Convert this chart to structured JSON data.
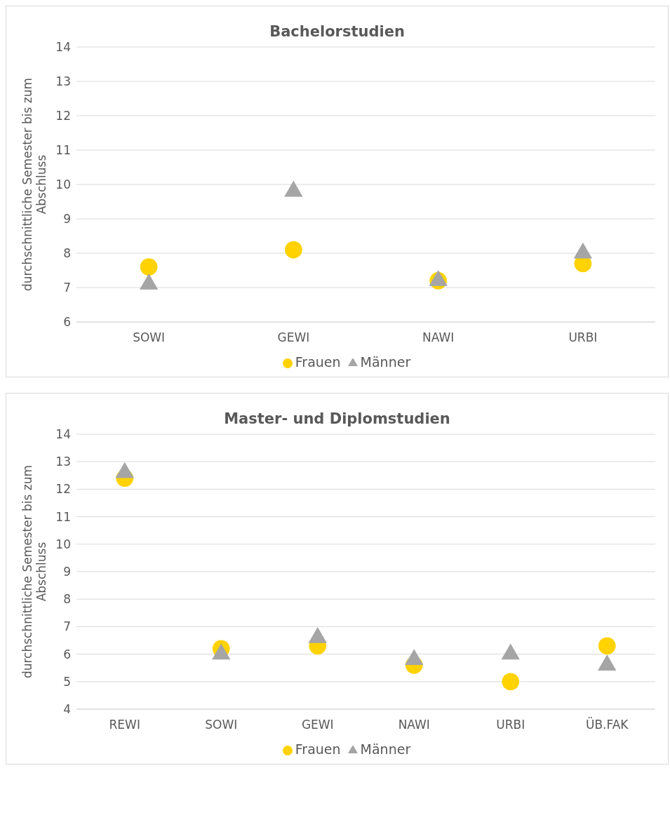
{
  "chart_data": [
    {
      "type": "scatter",
      "title": "Bachelorstudien",
      "ylabel": "durchschnittliche Semester bis zum Abschluss",
      "categories": [
        "SOWI",
        "GEWI",
        "NAWI",
        "URBI"
      ],
      "ylim": [
        6,
        14
      ],
      "yticks": [
        6,
        7,
        8,
        9,
        10,
        11,
        12,
        13,
        14
      ],
      "grid": "y",
      "legend": "bottom",
      "series": [
        {
          "name": "Frauen",
          "color": "#ffd200",
          "marker": "circle",
          "values": [
            7.6,
            8.1,
            7.2,
            7.7
          ]
        },
        {
          "name": "Männer",
          "color": "#a5a5a5",
          "marker": "triangle",
          "values": [
            7.1,
            9.8,
            7.2,
            8.0
          ]
        }
      ]
    },
    {
      "type": "scatter",
      "title": "Master- und Diplomstudien",
      "ylabel": "durchschnittliche Semester bis zum Abschluss",
      "categories": [
        "REWI",
        "SOWI",
        "GEWI",
        "NAWI",
        "URBI",
        "ÜB.FAK"
      ],
      "ylim": [
        4,
        14
      ],
      "yticks": [
        4,
        5,
        6,
        7,
        8,
        9,
        10,
        11,
        12,
        13,
        14
      ],
      "grid": "y",
      "legend": "bottom",
      "series": [
        {
          "name": "Frauen",
          "color": "#ffd200",
          "marker": "circle",
          "values": [
            12.4,
            6.2,
            6.3,
            5.6,
            5.0,
            6.3
          ]
        },
        {
          "name": "Männer",
          "color": "#a5a5a5",
          "marker": "triangle",
          "values": [
            12.6,
            6.0,
            6.6,
            5.8,
            6.0,
            5.6
          ]
        }
      ]
    }
  ]
}
